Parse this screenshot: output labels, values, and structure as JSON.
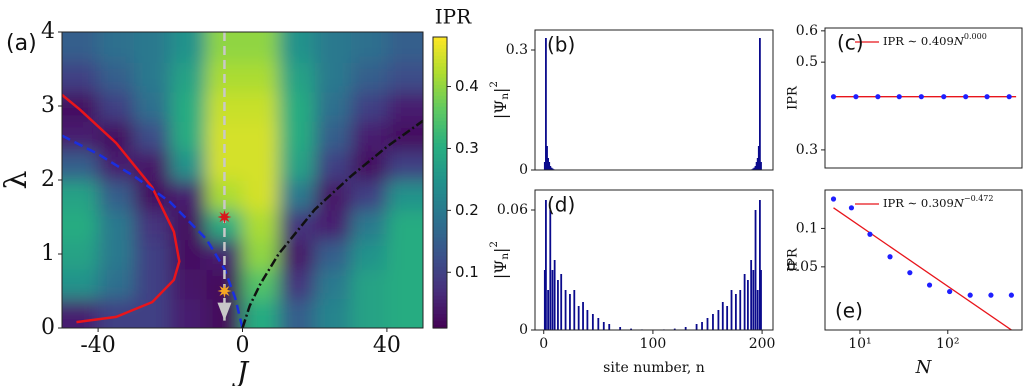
{
  "chart_data": [
    {
      "type": "heatmap",
      "label": "(a)",
      "x_label": "J",
      "y_label": "λ",
      "x": [
        -45,
        -35,
        -25,
        -15,
        -5,
        5,
        15,
        25,
        35,
        45
      ],
      "y": [
        0.2,
        0.6,
        1.0,
        1.4,
        1.8,
        2.2,
        2.6,
        3.0,
        3.4,
        3.8
      ],
      "z": [
        [
          0.05,
          0.1,
          0.1,
          0.05,
          0.02,
          0.3,
          0.15,
          0.22,
          0.28,
          0.3
        ],
        [
          0.25,
          0.18,
          0.1,
          0.04,
          0.02,
          0.35,
          0.08,
          0.2,
          0.28,
          0.3
        ],
        [
          0.28,
          0.2,
          0.1,
          0.03,
          0.05,
          0.4,
          0.04,
          0.15,
          0.25,
          0.3
        ],
        [
          0.3,
          0.2,
          0.08,
          0.03,
          0.3,
          0.42,
          0.08,
          0.05,
          0.2,
          0.3
        ],
        [
          0.28,
          0.15,
          0.03,
          0.05,
          0.42,
          0.45,
          0.2,
          0.04,
          0.1,
          0.25
        ],
        [
          0.15,
          0.05,
          0.04,
          0.25,
          0.45,
          0.45,
          0.28,
          0.1,
          0.03,
          0.1
        ],
        [
          0.05,
          0.03,
          0.12,
          0.3,
          0.45,
          0.45,
          0.3,
          0.15,
          0.05,
          0.03
        ],
        [
          0.03,
          0.1,
          0.18,
          0.3,
          0.44,
          0.44,
          0.3,
          0.18,
          0.1,
          0.05
        ],
        [
          0.1,
          0.15,
          0.2,
          0.28,
          0.42,
          0.42,
          0.28,
          0.2,
          0.15,
          0.12
        ],
        [
          0.15,
          0.18,
          0.2,
          0.25,
          0.4,
          0.4,
          0.25,
          0.2,
          0.18,
          0.15
        ]
      ],
      "colormap": "viridis",
      "clim": [
        0.01,
        0.48
      ],
      "colorbar_title": "IPR",
      "colorbar_ticks": [
        0.1,
        0.2,
        0.3,
        0.4
      ],
      "xlim": [
        -50,
        50
      ],
      "ylim": [
        0,
        4
      ],
      "xticks": [
        -40,
        0,
        40
      ],
      "yticks": [
        0,
        1,
        2,
        3,
        4
      ],
      "lines": [
        {
          "color": "#e8151b",
          "style": "solid",
          "x": [
            -46,
            -35,
            -25,
            -19,
            -17.5,
            -19,
            -25,
            -35,
            -45,
            -50
          ],
          "values": [
            0.08,
            0.15,
            0.35,
            0.65,
            0.9,
            1.3,
            1.9,
            2.5,
            2.95,
            3.15
          ]
        },
        {
          "color": "#1a2fe0",
          "style": "dashed",
          "x": [
            -50,
            -40,
            -30,
            -20,
            -10,
            -5,
            -2,
            0
          ],
          "values": [
            2.6,
            2.35,
            2.05,
            1.7,
            1.2,
            0.8,
            0.4,
            0
          ]
        },
        {
          "color": "#111111",
          "style": "dashdot",
          "x": [
            0,
            2,
            5,
            10,
            20,
            30,
            40,
            50
          ],
          "values": [
            0,
            0.3,
            0.6,
            1.0,
            1.6,
            2.05,
            2.45,
            2.8
          ]
        },
        {
          "color": "#c8c8c8",
          "style": "dashed",
          "arrow": true,
          "x": [
            -5,
            -5
          ],
          "values": [
            4,
            0.1
          ]
        }
      ],
      "markers": [
        {
          "color": "#d7191c",
          "x": -5,
          "value": 1.5
        },
        {
          "color": "#f5a623",
          "x": -5,
          "value": 0.5
        }
      ]
    },
    {
      "type": "bar",
      "label": "(b)",
      "y_label": {
        "main": "|Ψ",
        "sub": "n",
        "close": "|",
        "sup": "2"
      },
      "color": "#0a0a8c",
      "x": [
        1,
        2,
        3,
        4,
        5,
        6,
        7,
        8,
        9,
        10,
        190,
        191,
        192,
        193,
        194,
        195,
        196,
        197,
        198,
        199
      ],
      "values": [
        0.02,
        0.33,
        0.06,
        0.03,
        0.02,
        0.01,
        0.006,
        0.004,
        0.002,
        0.001,
        0.001,
        0.002,
        0.004,
        0.006,
        0.01,
        0.02,
        0.03,
        0.06,
        0.33,
        0.02
      ],
      "xlim": [
        -8,
        210
      ],
      "ylim": [
        0,
        0.35
      ],
      "yticks": [
        0,
        0.3
      ]
    },
    {
      "type": "loglog",
      "label": "(c)",
      "y_label": "IPR",
      "xlim": [
        4,
        700
      ],
      "ylim": [
        0.27,
        0.61
      ],
      "yticks": [
        0.3,
        0.5,
        0.6
      ],
      "points": {
        "color": "#1f1fff",
        "x": [
          5,
          9,
          16,
          28,
          50,
          90,
          160,
          280,
          500
        ],
        "values": [
          0.409,
          0.409,
          0.409,
          0.409,
          0.409,
          0.409,
          0.409,
          0.409,
          0.409
        ]
      },
      "line": {
        "color": "#e8151b",
        "x": [
          5,
          600
        ],
        "values": [
          0.409,
          0.409
        ],
        "legend": {
          "prefix": "IPR ∼ 0.409",
          "var": "N",
          "exp": "0.000"
        }
      }
    },
    {
      "type": "bar",
      "label": "(d)",
      "y_label": {
        "main": "|Ψ",
        "sub": "n",
        "close": "|",
        "sup": "2"
      },
      "x_label": "site number, n",
      "color": "#0a0a8c",
      "x": [
        1,
        2,
        4,
        6,
        8,
        10,
        13,
        16,
        20,
        24,
        28,
        32,
        36,
        40,
        45,
        50,
        55,
        60,
        70,
        80,
        90,
        100,
        110,
        120,
        130,
        140,
        145,
        150,
        155,
        160,
        164,
        168,
        172,
        176,
        180,
        184,
        187,
        190,
        192,
        194,
        196,
        198,
        199
      ],
      "values": [
        0.03,
        0.065,
        0.02,
        0.06,
        0.03,
        0.035,
        0.025,
        0.028,
        0.02,
        0.018,
        0.02,
        0.012,
        0.014,
        0.01,
        0.008,
        0.006,
        0.004,
        0.003,
        0.0015,
        0.0007,
        0.0003,
        0.0002,
        0.0003,
        0.0007,
        0.0015,
        0.003,
        0.004,
        0.006,
        0.008,
        0.01,
        0.014,
        0.012,
        0.02,
        0.018,
        0.02,
        0.028,
        0.025,
        0.035,
        0.03,
        0.06,
        0.02,
        0.065,
        0.03
      ],
      "xlim": [
        -8,
        210
      ],
      "ylim": [
        0,
        0.07
      ],
      "xticks": [
        0,
        100,
        200
      ],
      "yticks": [
        0,
        0.06
      ]
    },
    {
      "type": "loglog",
      "label": "(e)",
      "y_label": "IPR",
      "x_label": "N",
      "xlim": [
        4,
        700
      ],
      "ylim": [
        0.016,
        0.2
      ],
      "xticks": [
        {
          "value": 10,
          "label": "10¹"
        },
        {
          "value": 100,
          "label": "10²"
        }
      ],
      "yticks": [
        0.05,
        0.1
      ],
      "points": {
        "color": "#1f1fff",
        "x": [
          5,
          8,
          13,
          22,
          37,
          62,
          105,
          180,
          310,
          530
        ],
        "values": [
          0.17,
          0.145,
          0.09,
          0.06,
          0.045,
          0.036,
          0.032,
          0.03,
          0.03,
          0.03
        ]
      },
      "line": {
        "color": "#e8151b",
        "x": [
          5,
          600
        ],
        "values": [
          0.145,
          0.0151
        ],
        "legend": {
          "prefix": "IPR ∼ 0.309",
          "var": "N",
          "exp": "−0.472"
        }
      }
    }
  ]
}
